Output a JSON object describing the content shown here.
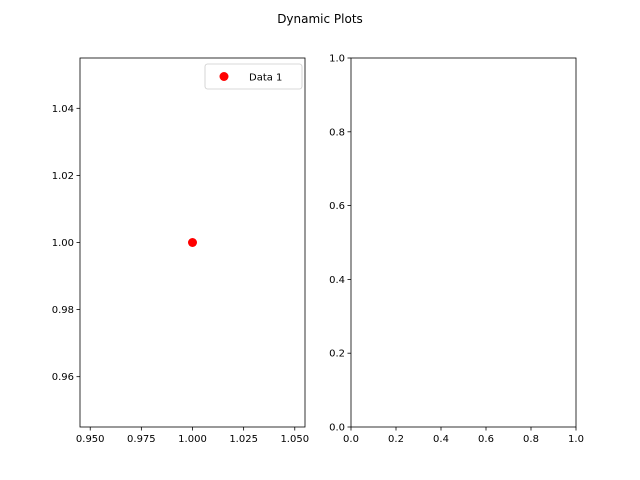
{
  "figure": {
    "suptitle": "Dynamic Plots"
  },
  "chart_data": [
    {
      "type": "scatter",
      "series": [
        {
          "name": "Data 1",
          "x": [
            1.0
          ],
          "y": [
            1.0
          ],
          "color": "#ff0000",
          "marker": "circle"
        }
      ],
      "xlim": [
        0.945,
        1.055
      ],
      "ylim": [
        0.945,
        1.055
      ],
      "xticks": [
        0.95,
        0.975,
        1.0,
        1.025,
        1.05
      ],
      "xtick_labels": [
        "0.950",
        "0.975",
        "1.000",
        "1.025",
        "1.050"
      ],
      "yticks": [
        0.96,
        0.98,
        1.0,
        1.02,
        1.04
      ],
      "ytick_labels": [
        "0.96",
        "0.98",
        "1.00",
        "1.02",
        "1.04"
      ],
      "grid": false,
      "legend": {
        "placement": "upper right",
        "entries": [
          "Data 1"
        ]
      }
    },
    {
      "type": "scatter",
      "series": [],
      "xlim": [
        0,
        1
      ],
      "ylim": [
        0,
        1
      ],
      "xticks": [
        0.0,
        0.2,
        0.4,
        0.6,
        0.8,
        1.0
      ],
      "xtick_labels": [
        "0.0",
        "0.2",
        "0.4",
        "0.6",
        "0.8",
        "1.0"
      ],
      "yticks": [
        0.0,
        0.2,
        0.4,
        0.6,
        0.8,
        1.0
      ],
      "ytick_labels": [
        "0.0",
        "0.2",
        "0.4",
        "0.6",
        "0.8",
        "1.0"
      ],
      "grid": false
    }
  ]
}
